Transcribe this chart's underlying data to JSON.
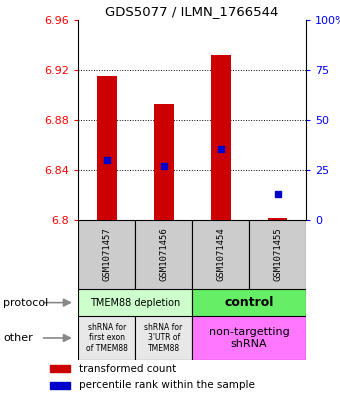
{
  "title": "GDS5077 / ILMN_1766544",
  "samples": [
    "GSM1071457",
    "GSM1071456",
    "GSM1071454",
    "GSM1071455"
  ],
  "bar_values": [
    6.915,
    6.893,
    6.932,
    6.802
  ],
  "bar_base": 6.8,
  "percentile_values": [
    6.848,
    6.843,
    6.857,
    6.821
  ],
  "ylim": [
    6.8,
    6.96
  ],
  "yticks_left": [
    6.8,
    6.84,
    6.88,
    6.92,
    6.96
  ],
  "yticks_right": [
    0,
    25,
    50,
    75,
    100
  ],
  "bar_color": "#cc0000",
  "percentile_color": "#0000cc",
  "protocol_labels": [
    "TMEM88 depletion",
    "control"
  ],
  "protocol_color_left": "#ccffcc",
  "protocol_color_right": "#66ee66",
  "other_labels_left1": "shRNA for\nfirst exon\nof TMEM88",
  "other_labels_left2": "shRNA for\n3'UTR of\nTMEM88",
  "other_label_right": "non-targetting\nshRNA",
  "other_color_left": "#e8e8e8",
  "other_color_right": "#ff77ff",
  "legend_red": "transformed count",
  "legend_blue": "percentile rank within the sample",
  "label_protocol": "protocol",
  "label_other": "other",
  "sample_bg": "#cccccc"
}
